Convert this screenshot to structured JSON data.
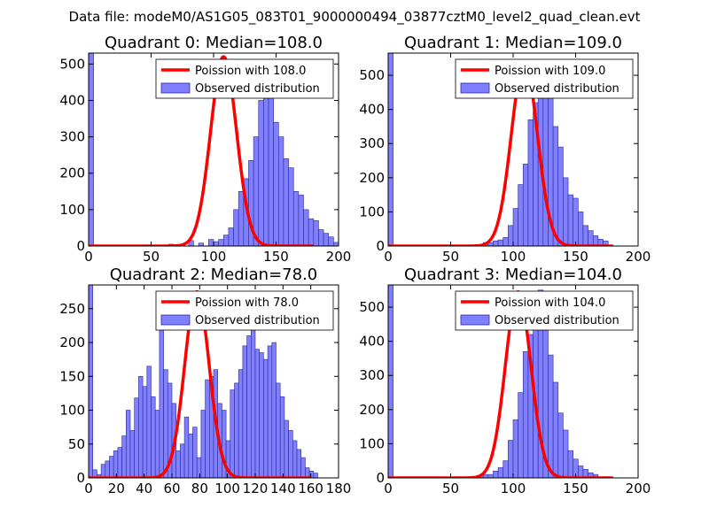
{
  "figure": {
    "suptitle": "Data file: modeM0/AS1G05_083T01_9000000494_03877cztM0_level2_quad_clean.evt"
  },
  "colors": {
    "bars_fill": "#7f7fff",
    "bars_edge": "#2b2b8f",
    "poisson_line": "#ff0000",
    "axes": "#000000"
  },
  "chart_data": [
    {
      "type": "bar",
      "title": "Quadrant 0: Median=108.0",
      "xlim": [
        0,
        200
      ],
      "ylim": [
        0,
        530
      ],
      "xticks": [
        0,
        50,
        100,
        150,
        200
      ],
      "yticks": [
        0,
        100,
        200,
        300,
        400,
        500
      ],
      "legend": {
        "position": "top-right",
        "line_label": "Poission with 108.0",
        "bar_label": "Observed distribution"
      },
      "bins": {
        "start": 0,
        "width": 4
      },
      "counts": [
        530,
        0,
        0,
        0,
        0,
        0,
        0,
        0,
        0,
        0,
        0,
        0,
        0,
        0,
        0,
        0,
        5,
        0,
        0,
        0,
        15,
        0,
        8,
        0,
        18,
        12,
        18,
        30,
        50,
        100,
        150,
        185,
        235,
        300,
        400,
        460,
        450,
        340,
        300,
        240,
        215,
        150,
        140,
        100,
        75,
        70,
        45,
        35,
        25,
        10,
        5
      ],
      "poisson": {
        "mean": 108.0,
        "peak": 520
      }
    },
    {
      "type": "bar",
      "title": "Quadrant 1: Median=109.0",
      "xlim": [
        0,
        200
      ],
      "ylim": [
        0,
        565
      ],
      "xticks": [
        0,
        50,
        100,
        150,
        200
      ],
      "yticks": [
        0,
        100,
        200,
        300,
        400,
        500
      ],
      "legend": {
        "position": "top-right",
        "line_label": "Poission with 109.0",
        "bar_label": "Observed distribution"
      },
      "bins": {
        "start": 0,
        "width": 4
      },
      "counts": [
        565,
        0,
        0,
        0,
        0,
        0,
        0,
        0,
        0,
        0,
        0,
        0,
        0,
        0,
        0,
        0,
        0,
        0,
        0,
        10,
        10,
        15,
        18,
        25,
        60,
        110,
        180,
        240,
        370,
        420,
        530,
        490,
        440,
        350,
        290,
        200,
        150,
        140,
        100,
        60,
        45,
        30,
        20,
        15
      ],
      "poisson": {
        "mean": 109.0,
        "peak": 540
      }
    },
    {
      "type": "bar",
      "title": "Quadrant 2: Median=78.0",
      "xlim": [
        0,
        180
      ],
      "ylim": [
        0,
        285
      ],
      "xticks": [
        0,
        20,
        40,
        60,
        80,
        100,
        120,
        140,
        160,
        180
      ],
      "yticks": [
        0,
        50,
        100,
        150,
        200,
        250
      ],
      "legend": {
        "position": "top-right",
        "line_label": "Poission with 78.0",
        "bar_label": "Observed distribution"
      },
      "bins": {
        "start": 0,
        "width": 3
      },
      "counts": [
        285,
        12,
        5,
        20,
        25,
        32,
        40,
        45,
        62,
        100,
        70,
        118,
        150,
        135,
        165,
        120,
        100,
        250,
        160,
        140,
        110,
        40,
        50,
        90,
        65,
        75,
        30,
        100,
        145,
        150,
        160,
        110,
        100,
        55,
        130,
        140,
        160,
        195,
        210,
        270,
        190,
        185,
        175,
        195,
        200,
        140,
        120,
        85,
        70,
        55,
        42,
        30,
        15,
        10,
        7
      ],
      "poisson": {
        "mean": 78.0,
        "peak": 275
      }
    },
    {
      "type": "bar",
      "title": "Quadrant 3: Median=104.0",
      "xlim": [
        0,
        200
      ],
      "ylim": [
        0,
        565
      ],
      "xticks": [
        0,
        50,
        100,
        150,
        200
      ],
      "yticks": [
        0,
        100,
        200,
        300,
        400,
        500
      ],
      "legend": {
        "position": "top-right",
        "line_label": "Poission with 104.0",
        "bar_label": "Observed distribution"
      },
      "bins": {
        "start": 0,
        "width": 4
      },
      "counts": [
        565,
        0,
        0,
        0,
        0,
        0,
        0,
        0,
        0,
        0,
        0,
        0,
        0,
        0,
        0,
        0,
        0,
        0,
        8,
        10,
        10,
        20,
        30,
        50,
        110,
        170,
        250,
        370,
        420,
        500,
        550,
        470,
        360,
        280,
        190,
        140,
        80,
        55,
        35,
        25,
        15,
        10
      ],
      "poisson": {
        "mean": 104.0,
        "peak": 545
      }
    }
  ]
}
